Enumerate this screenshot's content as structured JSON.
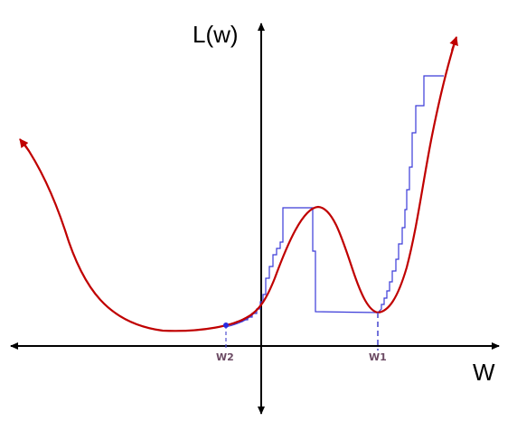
{
  "diagram": {
    "y_axis_label": "L(w)",
    "x_axis_label": "W",
    "markers": [
      {
        "label": "W2"
      },
      {
        "label": "W1"
      }
    ],
    "colors": {
      "axes": "#000000",
      "loss_curve": "#c00000",
      "optimizer_path": "#3a3ad8",
      "marker_line": "#5050d0",
      "marker_label": "#6b4a63",
      "point": "#2a2ae0"
    }
  }
}
